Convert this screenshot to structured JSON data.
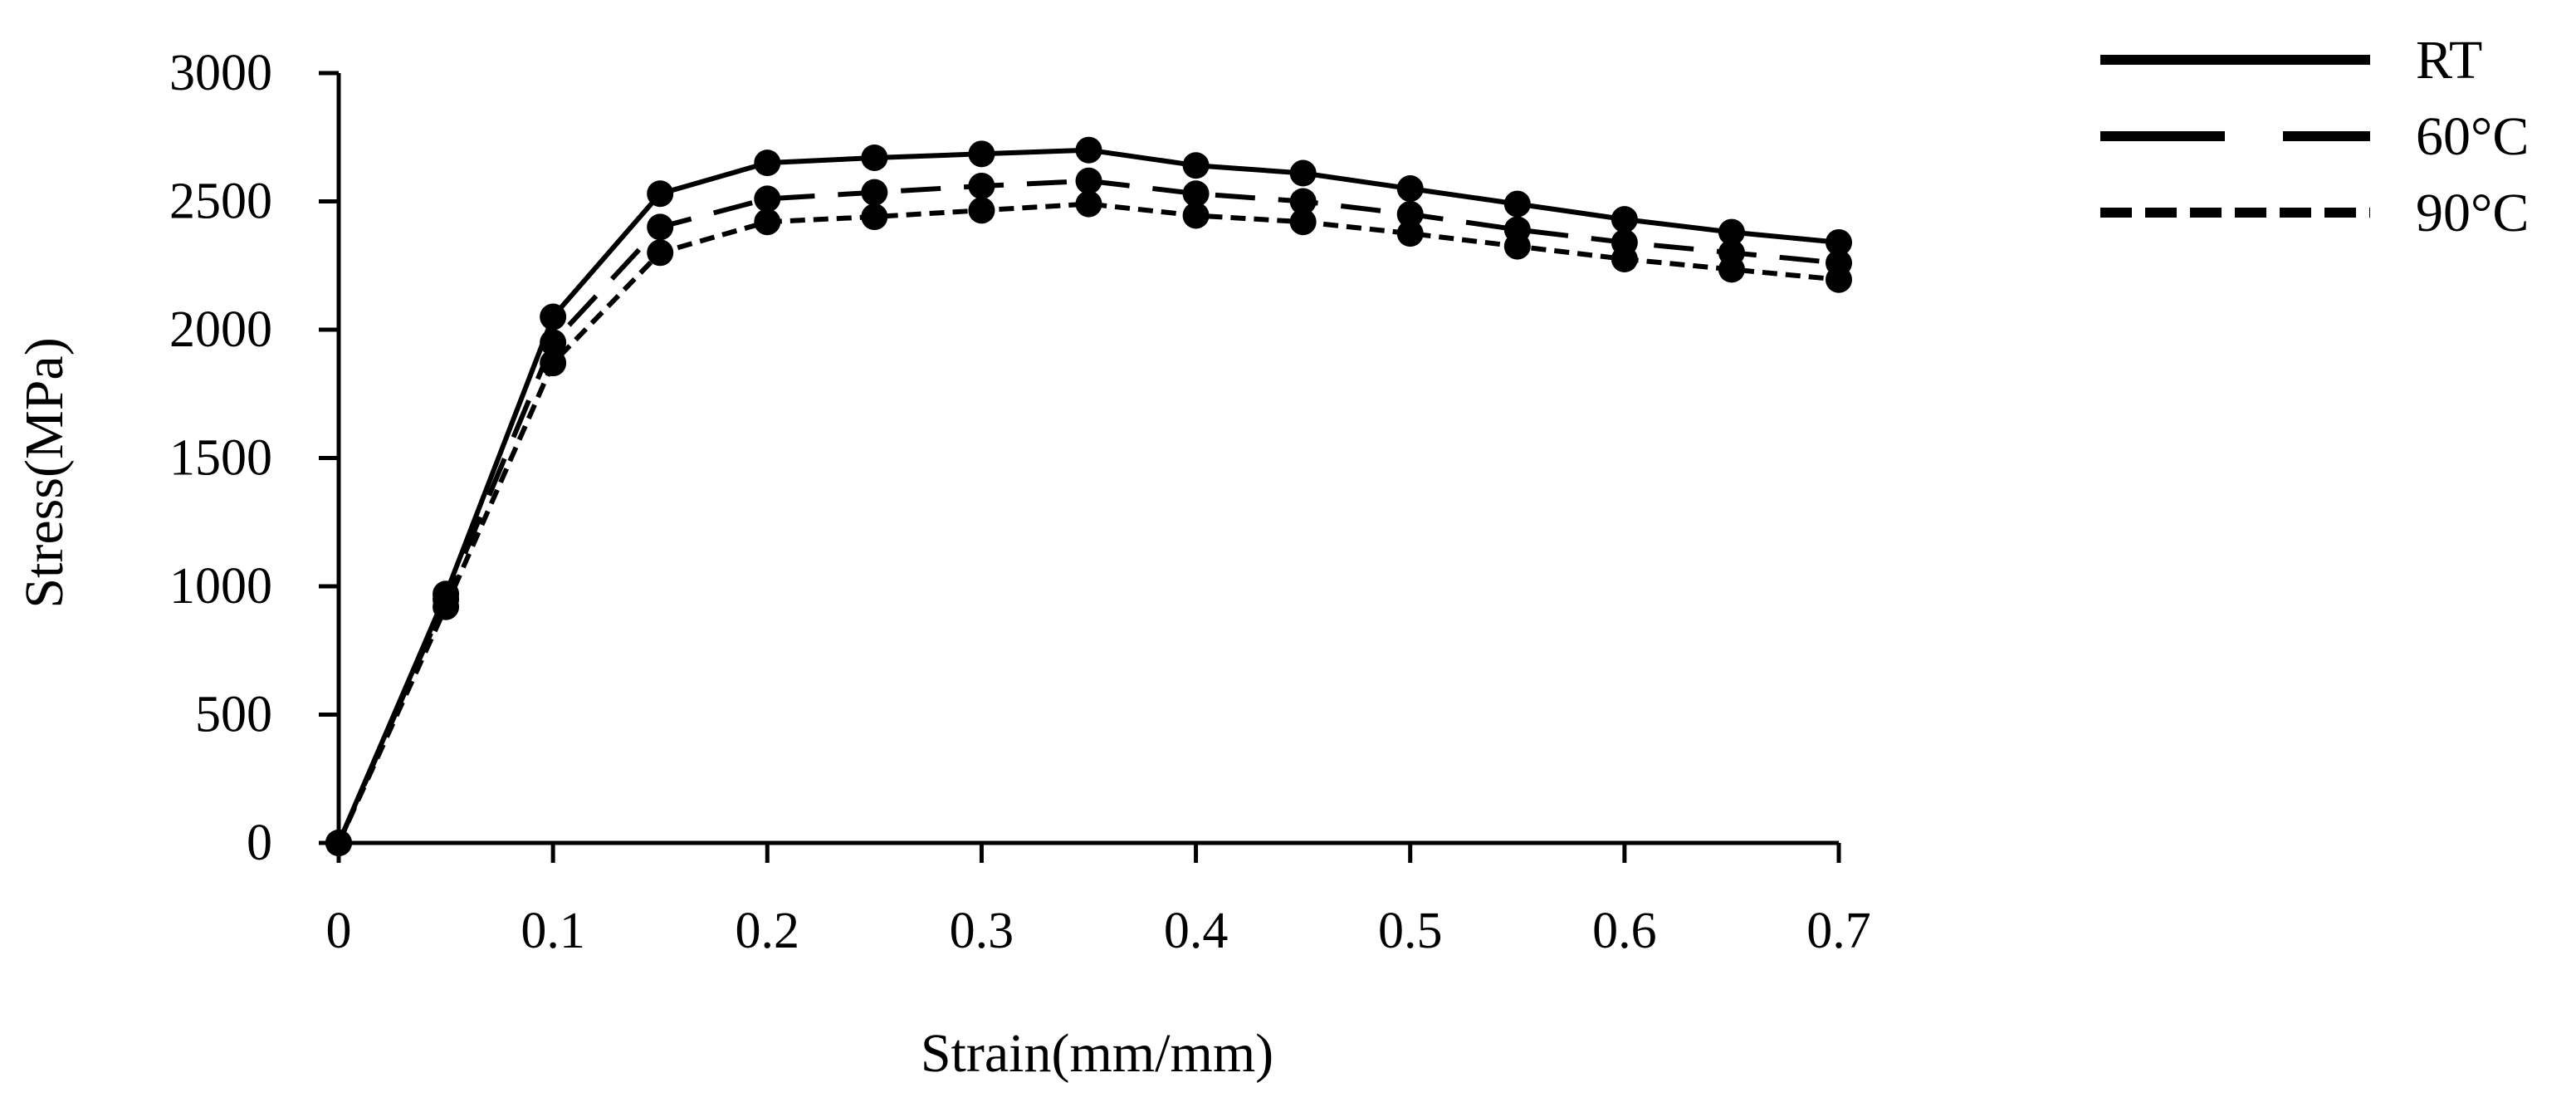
{
  "chart_data": {
    "type": "line",
    "title": "",
    "xlabel": "Strain(mm/mm)",
    "ylabel": "Stress(MPa)",
    "xlim": [
      0,
      0.7
    ],
    "ylim": [
      0,
      3000
    ],
    "x_ticks": [
      0,
      0.1,
      0.2,
      0.3,
      0.4,
      0.5,
      0.6,
      0.7
    ],
    "x_tick_labels": [
      "0",
      "0.1",
      "0.2",
      "0.3",
      "0.4",
      "0.5",
      "0.6",
      "0.7"
    ],
    "y_ticks": [
      0,
      500,
      1000,
      1500,
      2000,
      2500,
      3000
    ],
    "y_tick_labels": [
      "0",
      "500",
      "1000",
      "1500",
      "2000",
      "2500",
      "3000"
    ],
    "grid": false,
    "legend_position": "top-right",
    "x": [
      0,
      0.05,
      0.1,
      0.15,
      0.2,
      0.25,
      0.3,
      0.35,
      0.4,
      0.45,
      0.5,
      0.55,
      0.6,
      0.65,
      0.7
    ],
    "series": [
      {
        "name": "RT",
        "line_style": "solid",
        "marker": "circle",
        "color": "#000000",
        "values": [
          0,
          970,
          2050,
          2530,
          2650,
          2670,
          2685,
          2700,
          2640,
          2610,
          2550,
          2490,
          2430,
          2380,
          2340
        ]
      },
      {
        "name": "60°C",
        "line_style": "long-dash",
        "marker": "circle",
        "color": "#000000",
        "values": [
          0,
          950,
          1950,
          2400,
          2510,
          2535,
          2560,
          2580,
          2530,
          2500,
          2450,
          2390,
          2340,
          2300,
          2260
        ]
      },
      {
        "name": "90°C",
        "line_style": "short-dash",
        "marker": "circle",
        "color": "#000000",
        "values": [
          0,
          920,
          1870,
          2300,
          2420,
          2440,
          2465,
          2490,
          2445,
          2420,
          2375,
          2325,
          2275,
          2235,
          2195
        ]
      }
    ]
  }
}
